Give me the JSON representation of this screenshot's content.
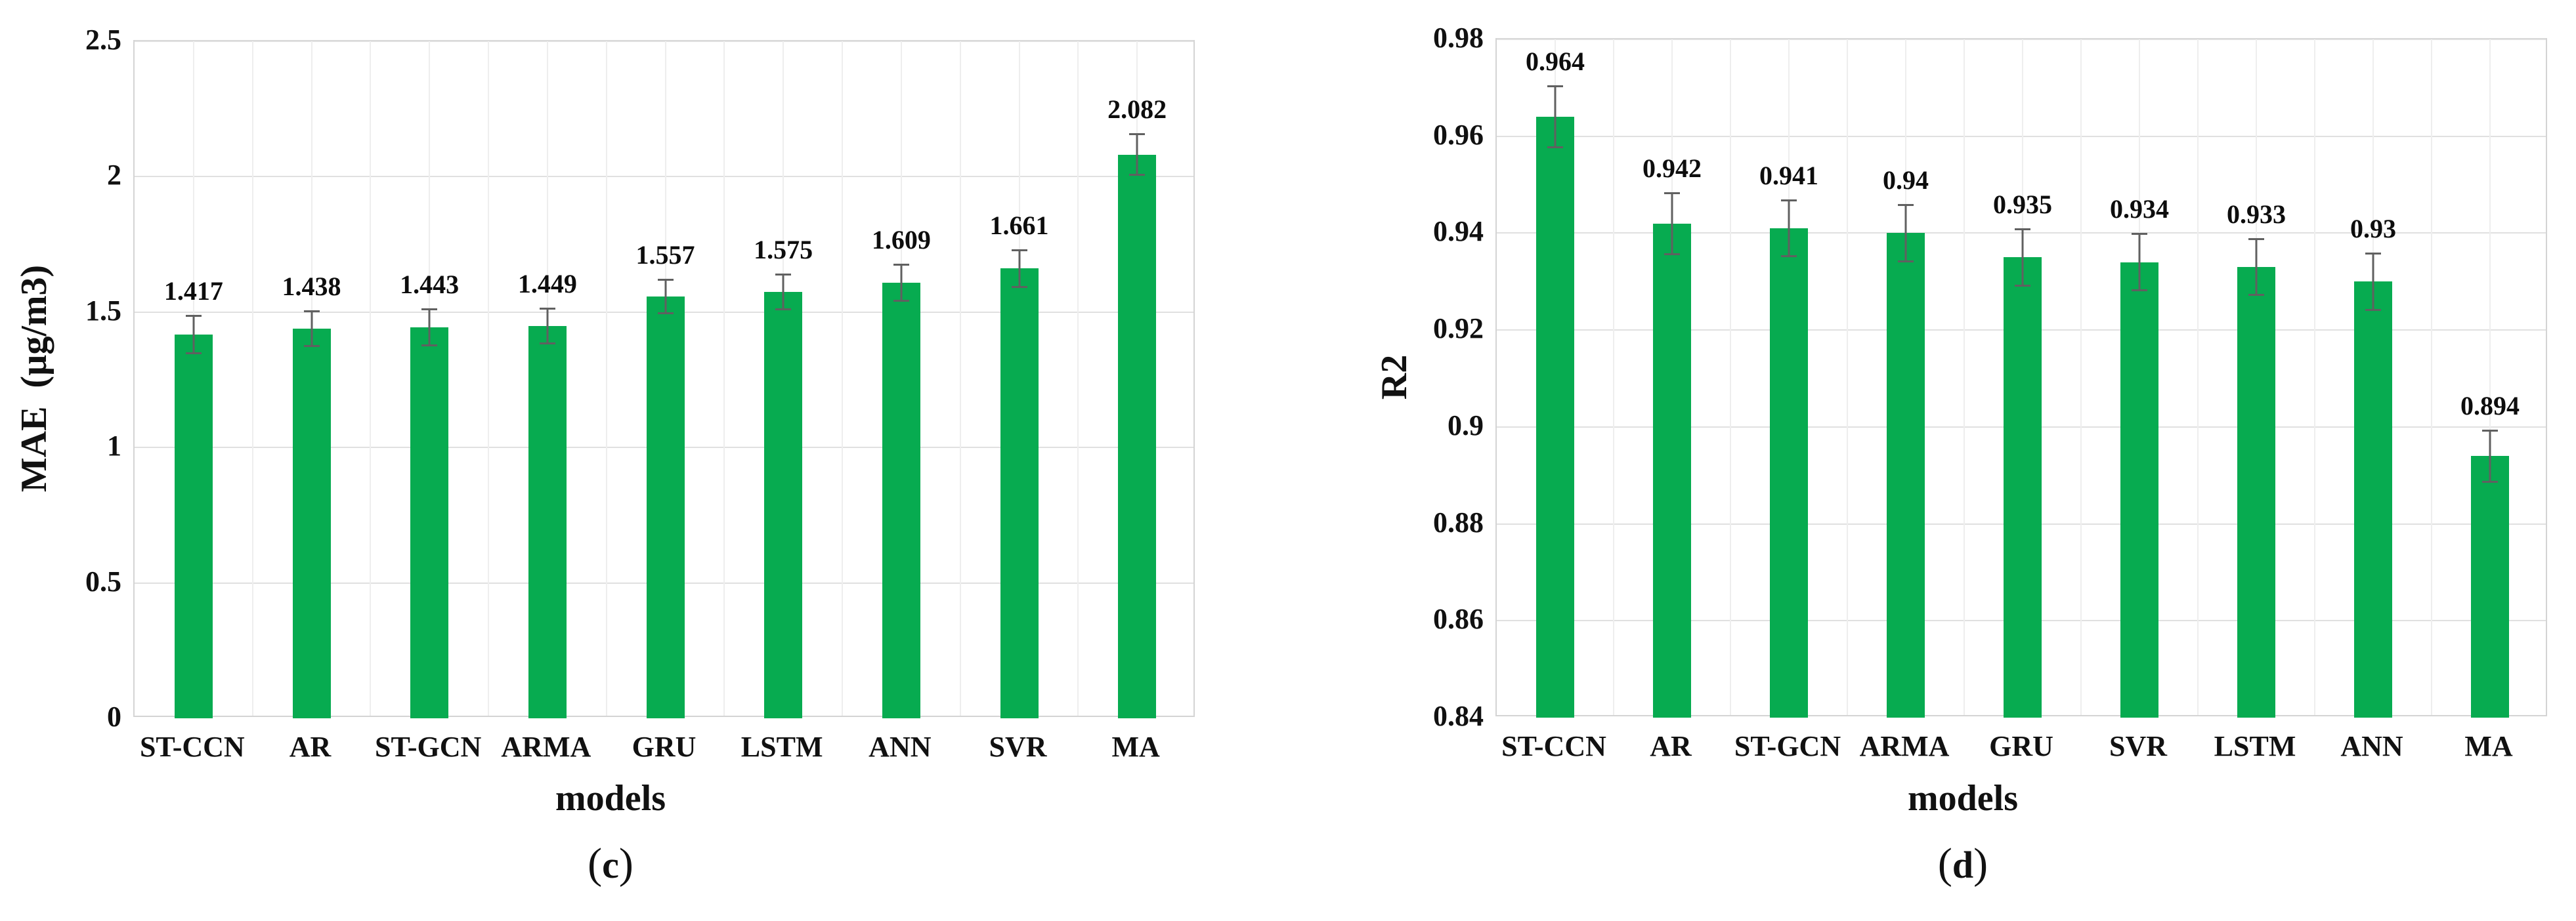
{
  "figure_type": "two-panel bar chart figure",
  "chart_data": [
    {
      "type": "bar",
      "panel": "c",
      "caption": "(c)",
      "categories": [
        "ST-CCN",
        "AR",
        "ST-GCN",
        "ARMA",
        "GRU",
        "LSTM",
        "ANN",
        "SVR",
        "MA"
      ],
      "values": [
        1.417,
        1.438,
        1.443,
        1.449,
        1.557,
        1.575,
        1.609,
        1.661,
        2.082
      ],
      "data_labels": [
        "1.417",
        "1.438",
        "1.443",
        "1.449",
        "1.557",
        "1.575",
        "1.609",
        "1.661",
        "2.082"
      ],
      "error_bars": [
        0.072,
        0.068,
        0.07,
        0.068,
        0.065,
        0.068,
        0.07,
        0.072,
        0.078
      ],
      "xlabel": "models",
      "ylabel": "MAE  (µg/m3)",
      "ylim": [
        0,
        2.5
      ],
      "ytick_step": 0.5,
      "yticks": [
        "0",
        "0.5",
        "1",
        "1.5",
        "2",
        "2.5"
      ],
      "grid": true,
      "legend": "none",
      "bar_color": "#07ab50",
      "error_color": "#606060"
    },
    {
      "type": "bar",
      "panel": "d",
      "caption": "(d)",
      "categories": [
        "ST-CCN",
        "AR",
        "ST-GCN",
        "ARMA",
        "GRU",
        "SVR",
        "LSTM",
        "ANN",
        "MA"
      ],
      "values": [
        0.964,
        0.942,
        0.941,
        0.94,
        0.935,
        0.934,
        0.933,
        0.93,
        0.894
      ],
      "data_labels": [
        "0.964",
        "0.942",
        "0.941",
        "0.94",
        "0.935",
        "0.934",
        "0.933",
        "0.93",
        "0.894"
      ],
      "error_bars": [
        0.0065,
        0.0065,
        0.006,
        0.006,
        0.006,
        0.006,
        0.006,
        0.006,
        0.0055
      ],
      "xlabel": "models",
      "ylabel": "R2",
      "ylim": [
        0.84,
        0.98
      ],
      "ytick_step": 0.02,
      "yticks": [
        "0.84",
        "0.86",
        "0.88",
        "0.9",
        "0.92",
        "0.94",
        "0.96",
        "0.98"
      ],
      "grid": true,
      "legend": "none",
      "bar_color": "#07ab50",
      "error_color": "#606060"
    }
  ]
}
